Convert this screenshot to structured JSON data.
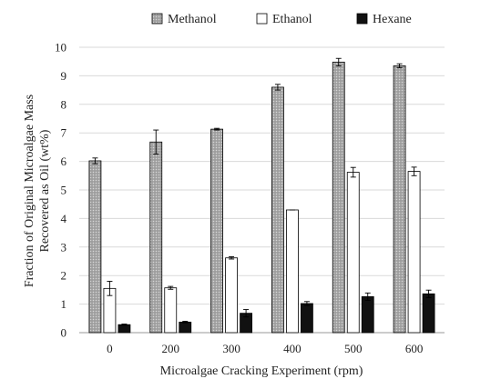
{
  "chart_data": {
    "type": "bar",
    "title": "",
    "xlabel": "Microalgae Cracking Experiment (rpm)",
    "ylabel_lines": [
      "Fraction of Original Microalgae Mass",
      "Recovered as Oil (wt%)"
    ],
    "categories": [
      "0",
      "200",
      "300",
      "400",
      "500",
      "600"
    ],
    "ylim": [
      0,
      10
    ],
    "yticks": [
      0,
      1,
      2,
      3,
      4,
      5,
      6,
      7,
      8,
      9,
      10
    ],
    "grid": true,
    "legend_position": "top",
    "series": [
      {
        "name": "Methanol",
        "fill": "#b3b3b3",
        "pattern": "dotted-gray",
        "values": [
          6.02,
          6.68,
          7.13,
          8.6,
          9.48,
          9.35
        ],
        "errors": [
          0.1,
          0.42,
          0.03,
          0.1,
          0.13,
          0.07
        ]
      },
      {
        "name": "Ethanol",
        "fill": "#ffffff",
        "pattern": "none",
        "values": [
          1.55,
          1.57,
          2.62,
          4.3,
          5.62,
          5.65
        ],
        "errors": [
          0.25,
          0.05,
          0.04,
          0.0,
          0.17,
          0.15
        ]
      },
      {
        "name": "Hexane",
        "fill": "#111111",
        "pattern": "none",
        "values": [
          0.28,
          0.37,
          0.68,
          1.02,
          1.26,
          1.36
        ],
        "errors": [
          0.02,
          0.03,
          0.13,
          0.07,
          0.13,
          0.13
        ]
      }
    ]
  }
}
